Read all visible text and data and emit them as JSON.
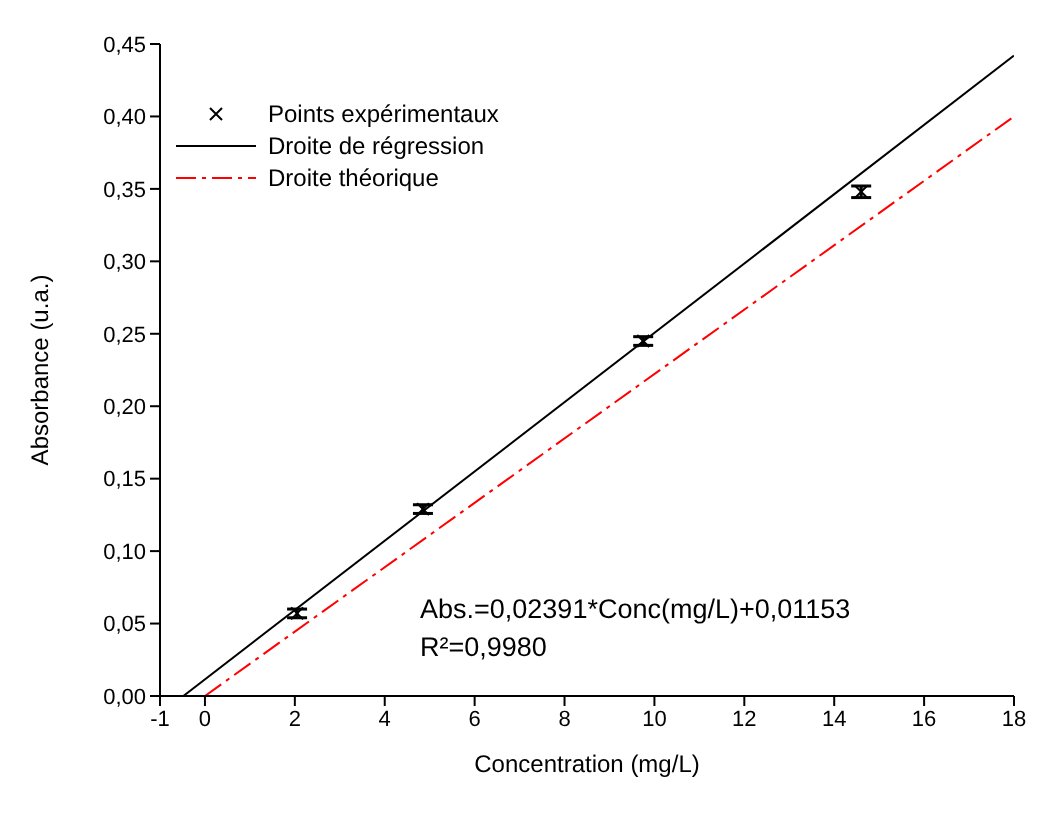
{
  "chart_data": {
    "type": "scatter",
    "xlabel": "Concentration (mg/L)",
    "ylabel": "Absorbance (u.a.)",
    "xlim": [
      -1,
      18
    ],
    "xticks": [
      -1,
      0,
      2,
      4,
      6,
      8,
      10,
      12,
      14,
      16,
      18
    ],
    "ylim": [
      0,
      0.45
    ],
    "yticks": [
      {
        "value": 0,
        "label": "0,00"
      },
      {
        "value": 0.05,
        "label": "0,05"
      },
      {
        "value": 0.1,
        "label": "0,10"
      },
      {
        "value": 0.15,
        "label": "0,15"
      },
      {
        "value": 0.2,
        "label": "0,20"
      },
      {
        "value": 0.25,
        "label": "0,25"
      },
      {
        "value": 0.3,
        "label": "0,30"
      },
      {
        "value": 0.35,
        "label": "0,35"
      },
      {
        "value": 0.4,
        "label": "0,40"
      },
      {
        "value": 0.45,
        "label": "0,45"
      }
    ],
    "grid": false,
    "legend": "top left",
    "series": [
      {
        "name": "Points expérimentaux",
        "color": "#000000",
        "marker": "cross",
        "x": [
          2.05,
          4.85,
          9.75,
          14.6
        ],
        "values": [
          0.057,
          0.129,
          0.245,
          0.348
        ],
        "errors": [
          0.003,
          0.003,
          0.003,
          0.004
        ]
      },
      {
        "name": "Droite de régression",
        "type": "line",
        "color": "#000000",
        "marker": "none",
        "line_style": "solid",
        "x": [
          -0.48,
          18
        ],
        "values": [
          0,
          0.442
        ]
      },
      {
        "name": "Droite théorique",
        "type": "line",
        "color": "#ff0000",
        "marker": "none",
        "line_style": "dashed",
        "x": [
          0,
          18
        ],
        "values": [
          0,
          0.4
        ]
      }
    ],
    "annotations": [
      "Abs.=0,02391*Conc(mg/L)+0,01153",
      "R²=0,9980"
    ]
  }
}
